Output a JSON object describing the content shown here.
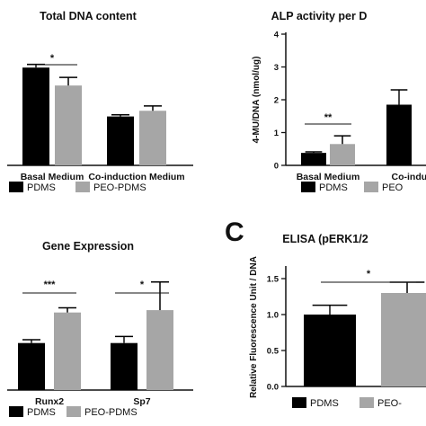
{
  "chart_data": [
    {
      "id": "dna",
      "type": "bar",
      "title": "Total DNA content",
      "ylabel": "",
      "ylim": [
        0,
        1.5
      ],
      "show_y_axis": false,
      "categories": [
        "Basal Medium",
        "Co-induction Medium"
      ],
      "series": [
        {
          "name": "PDMS",
          "color": "#000000",
          "values": [
            1.2,
            0.6
          ],
          "errors": [
            0.04,
            0.02
          ]
        },
        {
          "name": "PEO-PDMS",
          "color": "#a6a6a6",
          "values": [
            0.98,
            0.67
          ],
          "errors": [
            0.1,
            0.06
          ]
        }
      ],
      "significance": [
        {
          "category": 0,
          "label": "*"
        }
      ],
      "legend": [
        "PDMS",
        "PEO-PDMS"
      ],
      "legend_placement": "bottom"
    },
    {
      "id": "alp",
      "type": "bar",
      "title": "ALP activity per D",
      "ylabel": "4-MU/DNA (nmol/ug)",
      "ylim": [
        0,
        4
      ],
      "yticks": [
        0,
        1,
        2,
        3,
        4
      ],
      "show_y_axis": true,
      "categories": [
        "Basal Medium",
        "Co-induct"
      ],
      "series": [
        {
          "name": "PDMS",
          "color": "#000000",
          "values": [
            0.38,
            1.85
          ],
          "errors": [
            0.03,
            0.45
          ]
        },
        {
          "name": "PEO",
          "color": "#a6a6a6",
          "values": [
            0.65,
            null
          ],
          "errors": [
            0.25,
            null
          ]
        }
      ],
      "significance": [
        {
          "category": 0,
          "label": "**"
        }
      ],
      "legend": [
        "PDMS",
        "PEO"
      ],
      "legend_placement": "bottom"
    },
    {
      "id": "gene",
      "type": "bar",
      "title": "Gene Expression",
      "ylabel": "",
      "ylim": [
        0,
        2.6
      ],
      "show_y_axis": false,
      "categories": [
        "Runx2",
        "Sp7"
      ],
      "series": [
        {
          "name": "PDMS",
          "color": "#000000",
          "values": [
            1.0,
            1.0
          ],
          "errors": [
            0.07,
            0.14
          ]
        },
        {
          "name": "PEO-PDMS",
          "color": "#a6a6a6",
          "values": [
            1.65,
            1.7
          ],
          "errors": [
            0.1,
            0.6
          ]
        }
      ],
      "significance": [
        {
          "category": 0,
          "label": "***"
        },
        {
          "category": 1,
          "label": "*"
        }
      ],
      "legend": [
        "PDMS",
        "PEO-PDMS"
      ],
      "legend_placement": "bottom"
    },
    {
      "id": "elisa",
      "panel_letter": "C",
      "type": "bar",
      "title": "ELISA (pERK1/2",
      "ylabel": "Relative Fluorescence Unit / DNA",
      "ylim": [
        0,
        1.65
      ],
      "yticks": [
        0.0,
        0.5,
        1.0,
        1.5
      ],
      "ytick_labels": [
        "0.0",
        "0.5",
        "1.0",
        "1.5"
      ],
      "show_y_axis": true,
      "categories": [
        ""
      ],
      "series": [
        {
          "name": "PDMS",
          "color": "#000000",
          "values": [
            1.0
          ],
          "errors": [
            0.13
          ]
        },
        {
          "name": "PEO-",
          "color": "#a6a6a6",
          "values": [
            1.3
          ],
          "errors": [
            0.15
          ]
        }
      ],
      "significance": [
        {
          "category": 0,
          "label": "*"
        }
      ],
      "legend": [
        "PDMS",
        "PEO-"
      ],
      "legend_placement": "bottom"
    }
  ]
}
